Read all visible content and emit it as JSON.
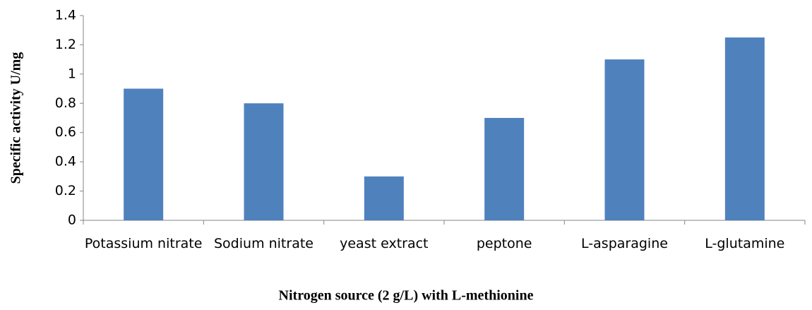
{
  "chart_data": {
    "type": "bar",
    "x_label": "Nitrogen source (2 g/L) with L-methionine",
    "y_label": "Specific activity U/mg",
    "categories": [
      "Potassium nitrate",
      "Sodium nitrate",
      "yeast extract",
      "peptone",
      "L-asparagine",
      "L-glutamine"
    ],
    "values": [
      0.9,
      0.8,
      0.3,
      0.7,
      1.1,
      1.25
    ],
    "color": "#4f81bd",
    "ylim": [
      0,
      1.4
    ],
    "yticks": [
      0,
      0.2,
      0.4,
      0.6,
      0.8,
      1,
      1.2,
      1.4
    ],
    "grid": false
  }
}
